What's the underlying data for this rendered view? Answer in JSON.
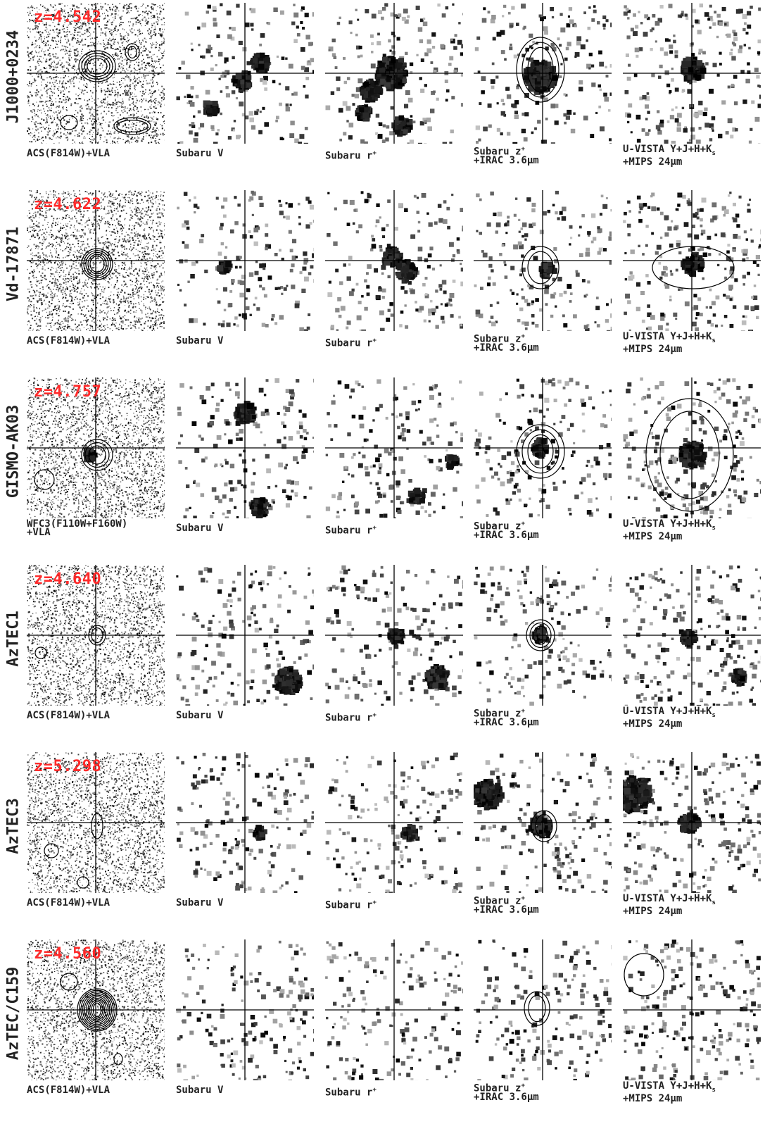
{
  "rows": [
    {
      "name": "J1000+0234",
      "z": "z=4.542",
      "cap1": "ACS(F814W)+VLA",
      "cap1b": ""
    },
    {
      "name": "Vd-17871",
      "z": "z=4.622",
      "cap1": "ACS(F814W)+VLA",
      "cap1b": ""
    },
    {
      "name": "GISMO-AK03",
      "z": "z=4.757",
      "cap1": "WFC3(F110W+F160W)",
      "cap1b": "+VLA"
    },
    {
      "name": "AzTEC1",
      "z": "z=4.640",
      "cap1": "ACS(F814W)+VLA",
      "cap1b": ""
    },
    {
      "name": "AzTEC3",
      "z": "z=5.298",
      "cap1": "ACS(F814W)+VLA",
      "cap1b": ""
    },
    {
      "name": "AzTEC/C159",
      "z": "z=4.560",
      "cap1": "ACS(F814W)+VLA",
      "cap1b": ""
    }
  ],
  "captions": {
    "subaru_v": "Subaru V",
    "subaru_r": "Subaru r",
    "subaru_r_sup": "+",
    "subaru_z": "Subaru z",
    "subaru_z_sup": "+",
    "irac": "+IRAC 3.6μm",
    "uvista": "U-VISTA Y+J+H+K",
    "uvista_sub": "s",
    "mips": "+MIPS 24μm"
  },
  "colors": {
    "redshift_label": "#ff2a2a",
    "crosshair": "#000000"
  }
}
